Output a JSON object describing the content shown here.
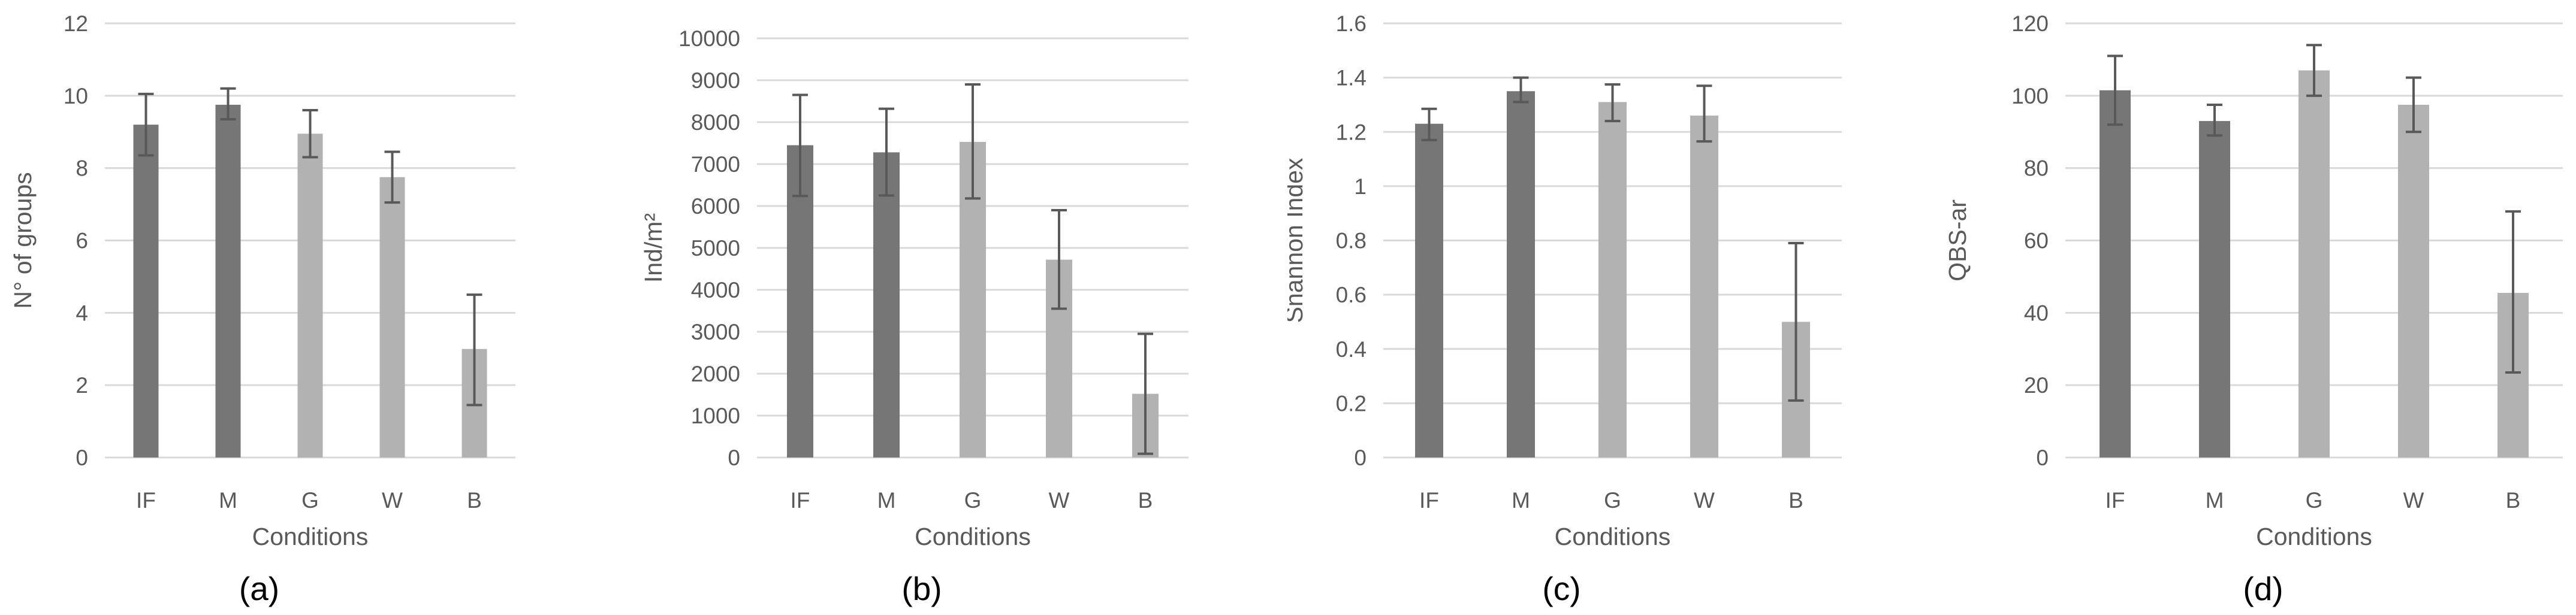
{
  "figure": {
    "background": "#ffffff",
    "panel_count": 4
  },
  "colors": {
    "bar_dark": "#767676",
    "bar_light": "#b2b2b2",
    "grid": "#d9d9d9",
    "error_bar": "#595959",
    "axis_text": "#595959",
    "caption_text": "#000000"
  },
  "bar_styles": [
    "dark",
    "dark",
    "light",
    "light",
    "light"
  ],
  "chart_data": [
    {
      "type": "bar",
      "caption": "(a)",
      "xlabel": "Conditions",
      "ylabel": "N° of groups",
      "categories": [
        "IF",
        "M",
        "G",
        "W",
        "B"
      ],
      "values": [
        9.2,
        9.75,
        8.95,
        7.75,
        3.0
      ],
      "err_up": [
        0.85,
        0.45,
        0.65,
        0.7,
        1.5
      ],
      "err_down": [
        0.85,
        0.4,
        0.65,
        0.7,
        1.55
      ],
      "ylim": [
        0,
        12
      ],
      "ystep": 2,
      "yticks": [
        "0",
        "2",
        "4",
        "6",
        "8",
        "10",
        "12"
      ],
      "grid": "horizontal",
      "legend": "none"
    },
    {
      "type": "bar",
      "caption": "(b)",
      "xlabel": "Conditions",
      "ylabel": "Ind/m²",
      "categories": [
        "IF",
        "M",
        "G",
        "W",
        "B"
      ],
      "values": [
        7450,
        7280,
        7530,
        4720,
        1520
      ],
      "err_up": [
        1200,
        1040,
        1370,
        1180,
        1430
      ],
      "err_down": [
        1210,
        1030,
        1350,
        1170,
        1430
      ],
      "ylim": [
        0,
        10000
      ],
      "ystep": 1000,
      "yticks": [
        "0",
        "1000",
        "2000",
        "3000",
        "4000",
        "5000",
        "6000",
        "7000",
        "8000",
        "9000",
        "10000"
      ],
      "grid": "horizontal",
      "legend": "none"
    },
    {
      "type": "bar",
      "caption": "(c)",
      "xlabel": "Conditions",
      "ylabel": "Snannon Index",
      "categories": [
        "IF",
        "M",
        "G",
        "W",
        "B"
      ],
      "values": [
        1.23,
        1.35,
        1.31,
        1.26,
        0.5
      ],
      "err_up": [
        0.055,
        0.05,
        0.065,
        0.11,
        0.29
      ],
      "err_down": [
        0.06,
        0.04,
        0.07,
        0.095,
        0.29
      ],
      "ylim": [
        0,
        1.6
      ],
      "ystep": 0.2,
      "yticks": [
        "0",
        "0.2",
        "0.4",
        "0.6",
        "0.8",
        "1",
        "1.2",
        "1.4",
        "1.6"
      ],
      "grid": "horizontal",
      "legend": "none"
    },
    {
      "type": "bar",
      "caption": "(d)",
      "xlabel": "Conditions",
      "ylabel": "QBS-ar",
      "categories": [
        "IF",
        "M",
        "G",
        "W",
        "B"
      ],
      "values": [
        101.5,
        93,
        107,
        97.5,
        45.5
      ],
      "err_up": [
        9.5,
        4.5,
        7,
        7.5,
        22.5
      ],
      "err_down": [
        9.5,
        4,
        7,
        7.5,
        22
      ],
      "ylim": [
        0,
        120
      ],
      "ystep": 20,
      "yticks": [
        "0",
        "20",
        "40",
        "60",
        "80",
        "100",
        "120"
      ],
      "grid": "horizontal",
      "legend": "none"
    }
  ]
}
